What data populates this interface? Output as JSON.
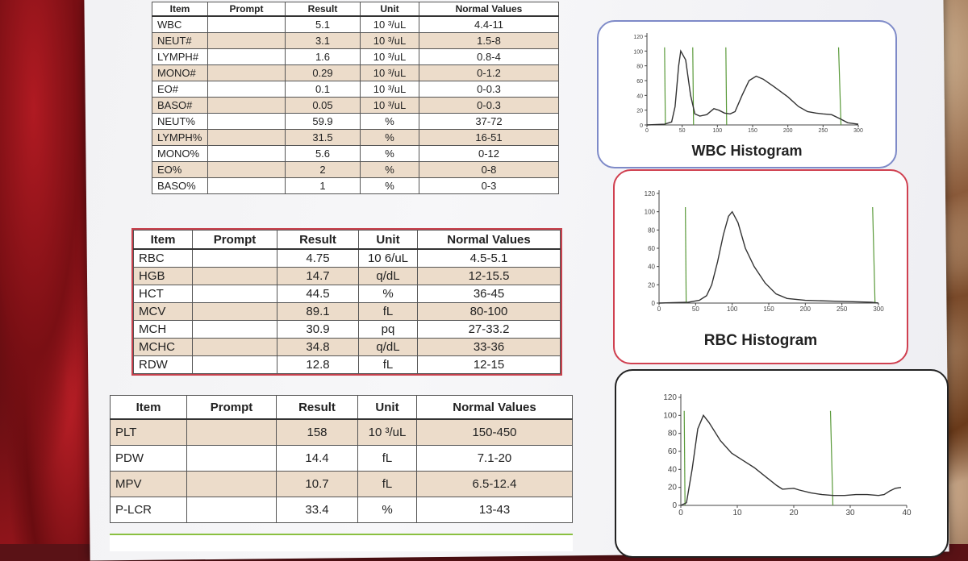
{
  "wbc_table": {
    "headers": [
      "Item",
      "Prompt",
      "Result",
      "Unit",
      "Normal Values"
    ],
    "rows": [
      {
        "item": "WBC",
        "prompt": "",
        "result": "5.1",
        "unit": "10 ³/uL",
        "normal": "4.4-11"
      },
      {
        "item": "NEUT#",
        "prompt": "",
        "result": "3.1",
        "unit": "10 ³/uL",
        "normal": "1.5-8"
      },
      {
        "item": "LYMPH#",
        "prompt": "",
        "result": "1.6",
        "unit": "10 ³/uL",
        "normal": "0.8-4"
      },
      {
        "item": "MONO#",
        "prompt": "",
        "result": "0.29",
        "unit": "10 ³/uL",
        "normal": "0-1.2"
      },
      {
        "item": "EO#",
        "prompt": "",
        "result": "0.1",
        "unit": "10 ³/uL",
        "normal": "0-0.3"
      },
      {
        "item": "BASO#",
        "prompt": "",
        "result": "0.05",
        "unit": "10 ³/uL",
        "normal": "0-0.3"
      },
      {
        "item": "NEUT%",
        "prompt": "",
        "result": "59.9",
        "unit": "%",
        "normal": "37-72"
      },
      {
        "item": "LYMPH%",
        "prompt": "",
        "result": "31.5",
        "unit": "%",
        "normal": "16-51"
      },
      {
        "item": "MONO%",
        "prompt": "",
        "result": "5.6",
        "unit": "%",
        "normal": "0-12"
      },
      {
        "item": "EO%",
        "prompt": "",
        "result": "2",
        "unit": "%",
        "normal": "0-8"
      },
      {
        "item": "BASO%",
        "prompt": "",
        "result": "1",
        "unit": "%",
        "normal": "0-3"
      }
    ]
  },
  "rbc_table": {
    "headers": [
      "Item",
      "Prompt",
      "Result",
      "Unit",
      "Normal Values"
    ],
    "rows": [
      {
        "item": "RBC",
        "prompt": "",
        "result": "4.75",
        "unit": "10 6/uL",
        "normal": "4.5-5.1"
      },
      {
        "item": "HGB",
        "prompt": "",
        "result": "14.7",
        "unit": "q/dL",
        "normal": "12-15.5"
      },
      {
        "item": "HCT",
        "prompt": "",
        "result": "44.5",
        "unit": "%",
        "normal": "36-45"
      },
      {
        "item": "MCV",
        "prompt": "",
        "result": "89.1",
        "unit": "fL",
        "normal": "80-100"
      },
      {
        "item": "MCH",
        "prompt": "",
        "result": "30.9",
        "unit": "pq",
        "normal": "27-33.2"
      },
      {
        "item": "MCHC",
        "prompt": "",
        "result": "34.8",
        "unit": "q/dL",
        "normal": "33-36"
      },
      {
        "item": "RDW",
        "prompt": "",
        "result": "12.8",
        "unit": "fL",
        "normal": "12-15"
      }
    ]
  },
  "plt_table": {
    "headers": [
      "Item",
      "Prompt",
      "Result",
      "Unit",
      "Normal Values"
    ],
    "rows": [
      {
        "item": "PLT",
        "prompt": "",
        "result": "158",
        "unit": "10 ³/uL",
        "normal": "150-450"
      },
      {
        "item": "PDW",
        "prompt": "",
        "result": "14.4",
        "unit": "fL",
        "normal": "7.1-20"
      },
      {
        "item": "MPV",
        "prompt": "",
        "result": "10.7",
        "unit": "fL",
        "normal": "6.5-12.4"
      },
      {
        "item": "P-LCR",
        "prompt": "",
        "result": "33.4",
        "unit": "%",
        "normal": "13-43"
      }
    ]
  },
  "histograms": {
    "wbc": {
      "title": "WBC Histogram",
      "x_ticks": [
        "0",
        "50",
        "100",
        "150",
        "200",
        "250",
        "300"
      ],
      "y_ticks": [
        "0",
        "20",
        "40",
        "60",
        "80",
        "100",
        "120"
      ],
      "xlim": [
        0,
        300
      ],
      "ylim": [
        0,
        120
      ],
      "curve": [
        [
          0,
          0
        ],
        [
          25,
          1
        ],
        [
          35,
          4
        ],
        [
          40,
          25
        ],
        [
          45,
          80
        ],
        [
          48,
          100
        ],
        [
          55,
          88
        ],
        [
          62,
          40
        ],
        [
          68,
          15
        ],
        [
          75,
          12
        ],
        [
          85,
          14
        ],
        [
          95,
          22
        ],
        [
          102,
          20
        ],
        [
          110,
          16
        ],
        [
          118,
          15
        ],
        [
          125,
          18
        ],
        [
          135,
          40
        ],
        [
          145,
          60
        ],
        [
          155,
          66
        ],
        [
          165,
          62
        ],
        [
          180,
          52
        ],
        [
          200,
          38
        ],
        [
          215,
          25
        ],
        [
          228,
          18
        ],
        [
          240,
          16
        ],
        [
          250,
          15
        ],
        [
          262,
          14
        ],
        [
          275,
          8
        ],
        [
          285,
          3
        ],
        [
          300,
          1
        ]
      ],
      "markers": [
        25,
        65,
        112,
        272
      ]
    },
    "rbc": {
      "title": "RBC Histogram",
      "x_ticks": [
        "0",
        "50",
        "100",
        "150",
        "200",
        "250",
        "300"
      ],
      "y_ticks": [
        "0",
        "20",
        "40",
        "60",
        "80",
        "100",
        "120"
      ],
      "xlim": [
        0,
        300
      ],
      "ylim": [
        0,
        120
      ],
      "curve": [
        [
          0,
          0
        ],
        [
          40,
          1
        ],
        [
          55,
          3
        ],
        [
          65,
          8
        ],
        [
          72,
          20
        ],
        [
          80,
          45
        ],
        [
          88,
          75
        ],
        [
          95,
          95
        ],
        [
          100,
          100
        ],
        [
          108,
          88
        ],
        [
          118,
          60
        ],
        [
          130,
          40
        ],
        [
          145,
          22
        ],
        [
          160,
          10
        ],
        [
          175,
          5
        ],
        [
          200,
          3
        ],
        [
          240,
          2
        ],
        [
          290,
          1
        ],
        [
          300,
          0
        ]
      ],
      "markers": [
        36,
        292
      ]
    },
    "plt": {
      "title": "",
      "x_ticks": [
        "0",
        "10",
        "20",
        "30",
        "40"
      ],
      "y_ticks": [
        "0",
        "20",
        "40",
        "60",
        "80",
        "100",
        "120"
      ],
      "xlim": [
        0,
        40
      ],
      "ylim": [
        0,
        120
      ],
      "curve": [
        [
          0,
          0
        ],
        [
          1,
          3
        ],
        [
          2,
          40
        ],
        [
          3,
          85
        ],
        [
          4,
          100
        ],
        [
          5,
          92
        ],
        [
          7,
          72
        ],
        [
          9,
          58
        ],
        [
          11,
          50
        ],
        [
          13,
          42
        ],
        [
          15,
          32
        ],
        [
          17,
          22
        ],
        [
          18,
          18
        ],
        [
          20,
          19
        ],
        [
          21,
          17
        ],
        [
          23,
          14
        ],
        [
          25,
          12
        ],
        [
          27,
          11
        ],
        [
          29,
          11
        ],
        [
          31,
          12
        ],
        [
          33,
          12
        ],
        [
          35,
          11
        ],
        [
          36,
          12
        ],
        [
          37,
          16
        ],
        [
          38,
          19
        ],
        [
          39,
          20
        ]
      ],
      "markers": [
        0.6,
        26.5
      ]
    }
  }
}
